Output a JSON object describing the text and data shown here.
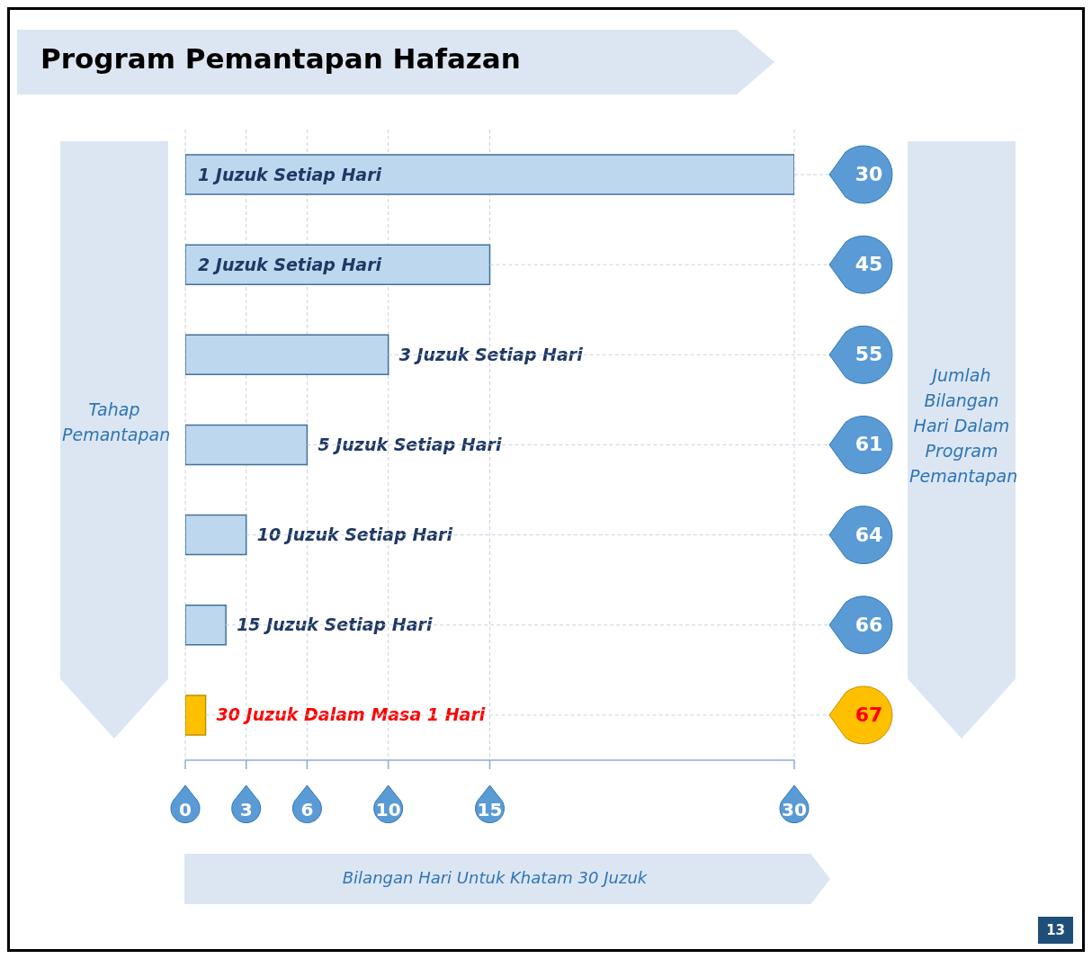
{
  "chart_data": {
    "type": "bar",
    "orientation": "horizontal",
    "title": "Program Pemantapan Hafazan",
    "ylabel": "Tahap Pemantapan",
    "categories": [
      "1 Juzuk Setiap Hari",
      "2 Juzuk Setiap Hari",
      "3 Juzuk Setiap Hari",
      "5 Juzuk Setiap Hari",
      "10 Juzuk Setiap Hari",
      "15 Juzuk Setiap Hari",
      "30 Juzuk Dalam Masa 1 Hari"
    ],
    "values": [
      30,
      15,
      10,
      6,
      3,
      2,
      1
    ],
    "colors": [
      "#bdd7ee",
      "#bdd7ee",
      "#bdd7ee",
      "#bdd7ee",
      "#bdd7ee",
      "#bdd7ee",
      "#ffc000"
    ],
    "xlim": [
      0,
      30
    ],
    "xticks": [
      0,
      3,
      6,
      10,
      15,
      30
    ],
    "grid": "x",
    "annotations": [
      "30",
      "45",
      "55",
      "61",
      "64",
      "66",
      "67",
      "Jumlah Bilangan Hari Dalam Program Pemantapan",
      "Bilangan Hari Untuk Khatam 30 Juzuk",
      "13"
    ]
  }
}
